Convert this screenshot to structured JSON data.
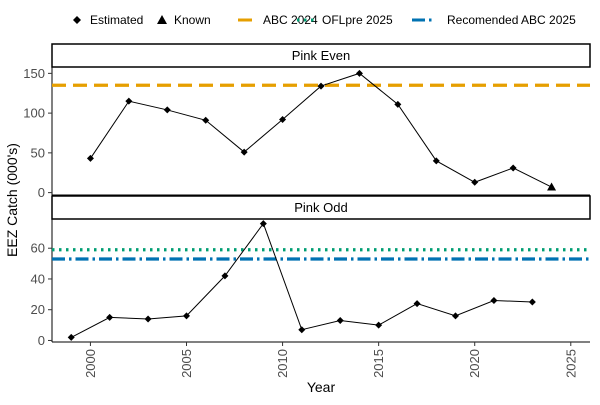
{
  "chart_data": {
    "type": "line",
    "x_label": "Year",
    "y_label": "EEZ Catch (000's)",
    "x_ticks": [
      2000,
      2005,
      2010,
      2015,
      2020,
      2025
    ],
    "x_range": [
      1998,
      2026
    ],
    "legend": {
      "position": "top",
      "shapes_entries": [
        {
          "label": "Estimated",
          "shape": "diamond"
        },
        {
          "label": "Known",
          "shape": "triangle"
        }
      ],
      "line_entries": [
        {
          "label": "ABC 2024",
          "color": "#E69F00",
          "dash": "dashed"
        },
        {
          "label": "OFLpre 2025",
          "color": "#009E73",
          "dash": "dotted"
        },
        {
          "label": "Recomended ABC 2025",
          "color": "#0072B2",
          "dash": "dotdash"
        }
      ]
    },
    "panels": [
      {
        "strip": "Pink Even",
        "y_ticks": [
          0,
          50,
          100,
          150
        ],
        "y_range": [
          -3,
          158
        ],
        "hlines": [
          {
            "series": "ABC 2024",
            "value": 135,
            "color": "#E69F00",
            "dash": "dashed"
          }
        ],
        "points": [
          {
            "x": 2000,
            "y": 43,
            "type": "Estimated"
          },
          {
            "x": 2002,
            "y": 115,
            "type": "Estimated"
          },
          {
            "x": 2004,
            "y": 104,
            "type": "Estimated"
          },
          {
            "x": 2006,
            "y": 91,
            "type": "Estimated"
          },
          {
            "x": 2008,
            "y": 51,
            "type": "Estimated"
          },
          {
            "x": 2010,
            "y": 92,
            "type": "Estimated"
          },
          {
            "x": 2012,
            "y": 134,
            "type": "Estimated"
          },
          {
            "x": 2014,
            "y": 150,
            "type": "Estimated"
          },
          {
            "x": 2016,
            "y": 111,
            "type": "Estimated"
          },
          {
            "x": 2018,
            "y": 40,
            "type": "Estimated"
          },
          {
            "x": 2020,
            "y": 13,
            "type": "Estimated"
          },
          {
            "x": 2022,
            "y": 31,
            "type": "Estimated"
          },
          {
            "x": 2024,
            "y": 7,
            "type": "Known"
          }
        ]
      },
      {
        "strip": "Pink Odd",
        "y_ticks": [
          0,
          20,
          40,
          60
        ],
        "y_range": [
          -1,
          79
        ],
        "hlines": [
          {
            "series": "OFLpre 2025",
            "value": 59,
            "color": "#009E73",
            "dash": "dotted"
          },
          {
            "series": "Recomended ABC 2025",
            "value": 53,
            "color": "#0072B2",
            "dash": "dotdash"
          }
        ],
        "points": [
          {
            "x": 1999,
            "y": 2,
            "type": "Estimated"
          },
          {
            "x": 2001,
            "y": 15,
            "type": "Estimated"
          },
          {
            "x": 2003,
            "y": 14,
            "type": "Estimated"
          },
          {
            "x": 2005,
            "y": 16,
            "type": "Estimated"
          },
          {
            "x": 2007,
            "y": 42,
            "type": "Estimated"
          },
          {
            "x": 2009,
            "y": 76,
            "type": "Estimated"
          },
          {
            "x": 2011,
            "y": 7,
            "type": "Estimated"
          },
          {
            "x": 2013,
            "y": 13,
            "type": "Estimated"
          },
          {
            "x": 2015,
            "y": 10,
            "type": "Estimated"
          },
          {
            "x": 2017,
            "y": 24,
            "type": "Estimated"
          },
          {
            "x": 2019,
            "y": 16,
            "type": "Estimated"
          },
          {
            "x": 2021,
            "y": 26,
            "type": "Estimated"
          },
          {
            "x": 2023,
            "y": 25,
            "type": "Estimated"
          }
        ]
      }
    ]
  }
}
